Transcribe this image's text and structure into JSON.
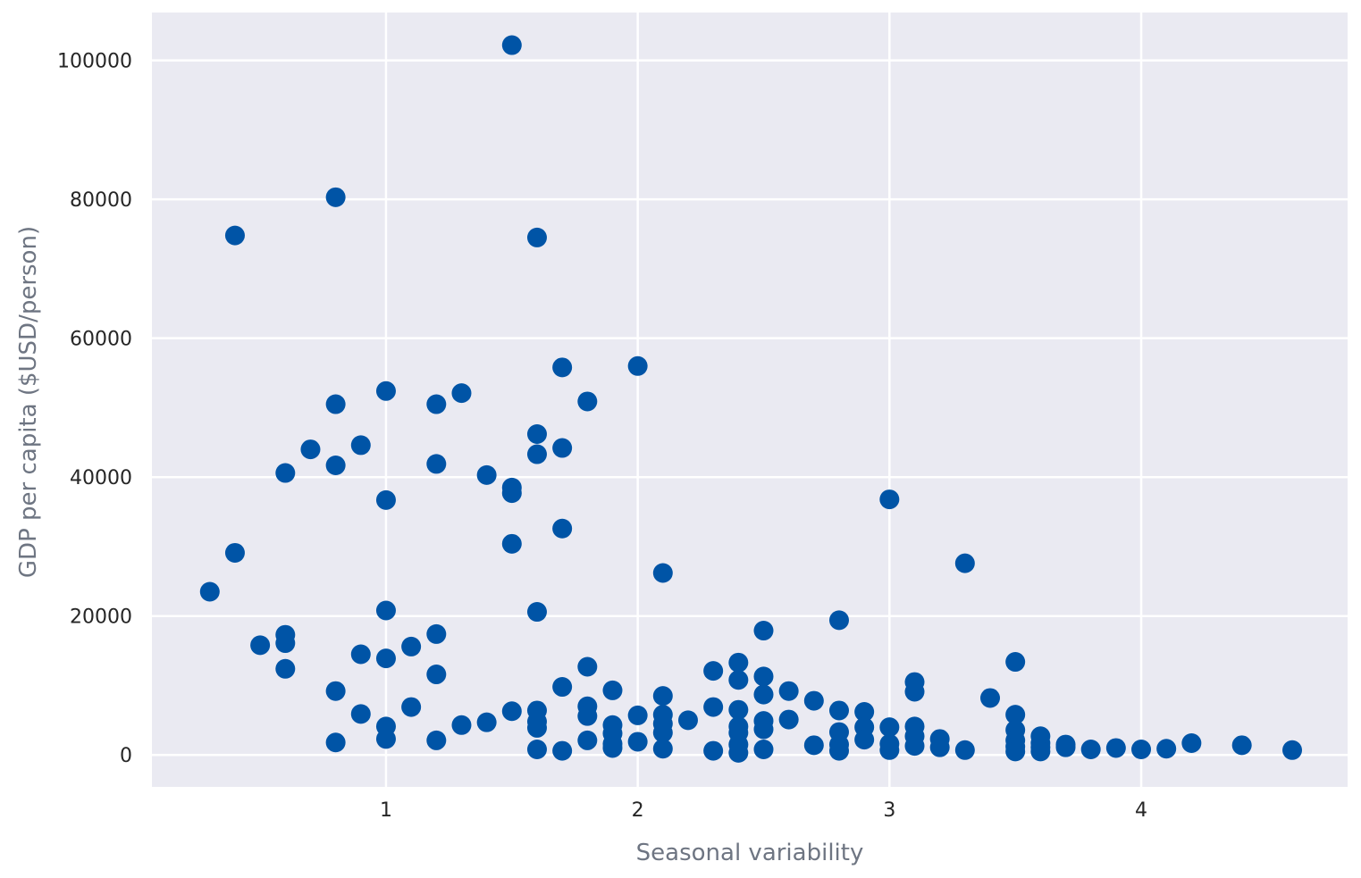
{
  "chart_data": {
    "type": "scatter",
    "title": "",
    "xlabel": "Seasonal variability",
    "ylabel": "GDP per capita ($USD/person)",
    "xlim": [
      0.07,
      4.82
    ],
    "ylim": [
      -4600,
      106900
    ],
    "x_ticks": [
      1,
      2,
      3,
      4
    ],
    "x_tick_labels": [
      "1",
      "2",
      "3",
      "4"
    ],
    "y_ticks": [
      0,
      20000,
      40000,
      60000,
      80000,
      100000
    ],
    "y_tick_labels": [
      "0",
      "20000",
      "40000",
      "60000",
      "80000",
      "100000"
    ],
    "grid": true,
    "legend": "none",
    "colors": {
      "background": "#eaeaf2",
      "grid": "#ffffff",
      "marker": "#0054a6"
    },
    "series": [
      {
        "x": [
          0.3,
          0.4,
          0.4,
          0.5,
          0.6,
          0.6,
          0.6,
          0.6,
          0.7,
          0.8,
          0.8,
          0.8,
          0.8,
          0.8,
          0.9,
          0.9,
          0.9,
          1.0,
          1.0,
          1.0,
          1.0,
          1.0,
          1.0,
          1.1,
          1.1,
          1.2,
          1.2,
          1.2,
          1.2,
          1.2,
          1.3,
          1.3,
          1.4,
          1.4,
          1.5,
          1.5,
          1.5,
          1.5,
          1.5,
          1.6,
          1.6,
          1.6,
          1.6,
          1.6,
          1.6,
          1.6,
          1.6,
          1.7,
          1.7,
          1.7,
          1.7,
          1.7,
          1.8,
          1.8,
          1.8,
          1.8,
          1.8,
          1.9,
          1.9,
          1.9,
          1.9,
          1.9,
          2.0,
          2.0,
          2.0,
          2.1,
          2.1,
          2.1,
          2.1,
          2.1,
          2.1,
          2.2,
          2.3,
          2.3,
          2.3,
          2.4,
          2.4,
          2.4,
          2.4,
          2.4,
          2.4,
          2.4,
          2.5,
          2.5,
          2.5,
          2.5,
          2.5,
          2.5,
          2.6,
          2.6,
          2.7,
          2.7,
          2.8,
          2.8,
          2.8,
          2.8,
          2.8,
          2.9,
          2.9,
          2.9,
          3.0,
          3.0,
          3.0,
          3.0,
          3.1,
          3.1,
          3.1,
          3.1,
          3.1,
          3.2,
          3.2,
          3.3,
          3.3,
          3.4,
          3.5,
          3.5,
          3.5,
          3.5,
          3.5,
          3.5,
          3.6,
          3.6,
          3.6,
          3.6,
          3.7,
          3.7,
          3.8,
          3.9,
          4.0,
          4.1,
          4.2,
          4.4,
          4.6
        ],
        "y": [
          23500,
          74800,
          29100,
          15800,
          40600,
          17300,
          16100,
          12400,
          44000,
          80300,
          50500,
          41700,
          9200,
          1800,
          44600,
          14500,
          5900,
          52400,
          36700,
          20800,
          13900,
          4100,
          2300,
          15600,
          6900,
          50500,
          41900,
          17400,
          11600,
          2100,
          52100,
          4300,
          40300,
          4700,
          102200,
          38500,
          37700,
          30400,
          6300,
          74500,
          46200,
          43300,
          20600,
          6400,
          4800,
          3900,
          800,
          55800,
          44200,
          32600,
          9800,
          600,
          50900,
          12700,
          7000,
          5600,
          2100,
          9300,
          4300,
          3100,
          1600,
          1000,
          56000,
          5700,
          1900,
          26200,
          8500,
          5800,
          4500,
          3200,
          900,
          5000,
          12100,
          6900,
          600,
          13300,
          10800,
          6500,
          4100,
          3200,
          1500,
          300,
          17900,
          11300,
          8700,
          4900,
          3700,
          800,
          9200,
          5100,
          7800,
          1400,
          19400,
          6400,
          3300,
          1500,
          600,
          6200,
          4000,
          2200,
          36800,
          4000,
          1600,
          700,
          10500,
          9100,
          4100,
          2700,
          1300,
          2300,
          1100,
          27600,
          700,
          8200,
          13400,
          5800,
          3600,
          2100,
          1200,
          500,
          2700,
          1700,
          1100,
          500,
          1500,
          1100,
          800,
          1000,
          800,
          900,
          1700,
          1400,
          700
        ]
      }
    ]
  }
}
